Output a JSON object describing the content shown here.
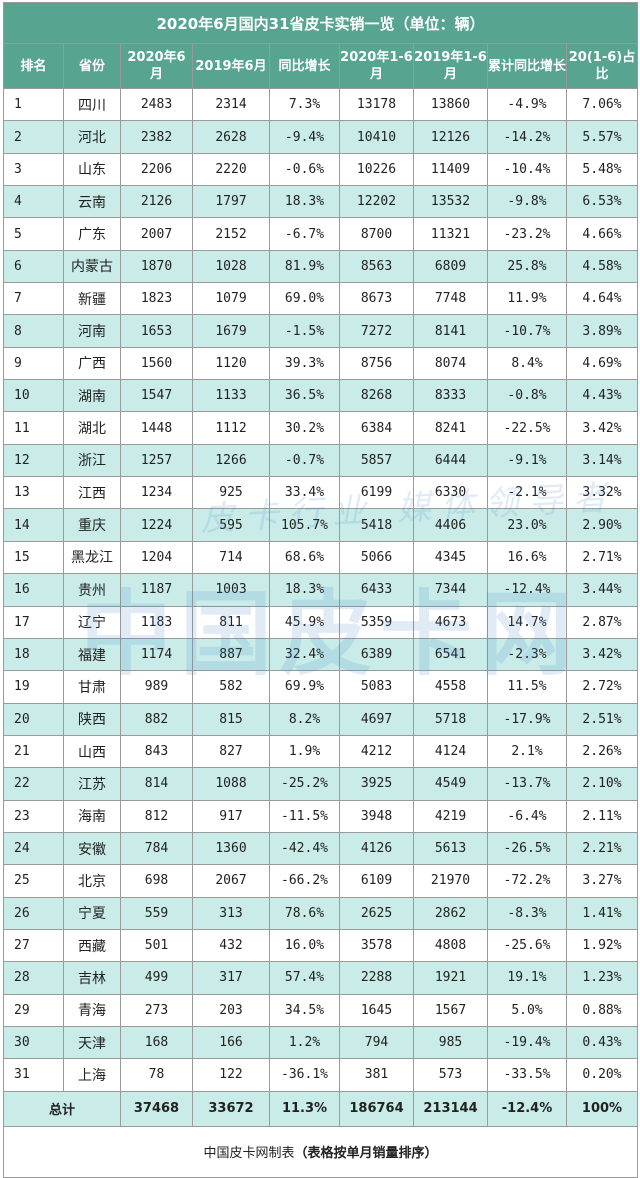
{
  "title": "2020年6月国内31省皮卡实销一览（单位：辆）",
  "headers": [
    "排名",
    "省份",
    "2020年6月",
    "2019年6月",
    "同比增长",
    "2020年1-6月",
    "2019年1-6月",
    "累计同比增长",
    "20(1-6)占比"
  ],
  "rows": [
    [
      "1",
      "四川",
      "2483",
      "2314",
      "7.3%",
      "13178",
      "13860",
      "-4.9%",
      "7.06%"
    ],
    [
      "2",
      "河北",
      "2382",
      "2628",
      "-9.4%",
      "10410",
      "12126",
      "-14.2%",
      "5.57%"
    ],
    [
      "3",
      "山东",
      "2206",
      "2220",
      "-0.6%",
      "10226",
      "11409",
      "-10.4%",
      "5.48%"
    ],
    [
      "4",
      "云南",
      "2126",
      "1797",
      "18.3%",
      "12202",
      "13532",
      "-9.8%",
      "6.53%"
    ],
    [
      "5",
      "广东",
      "2007",
      "2152",
      "-6.7%",
      "8700",
      "11321",
      "-23.2%",
      "4.66%"
    ],
    [
      "6",
      "内蒙古",
      "1870",
      "1028",
      "81.9%",
      "8563",
      "6809",
      "25.8%",
      "4.58%"
    ],
    [
      "7",
      "新疆",
      "1823",
      "1079",
      "69.0%",
      "8673",
      "7748",
      "11.9%",
      "4.64%"
    ],
    [
      "8",
      "河南",
      "1653",
      "1679",
      "-1.5%",
      "7272",
      "8141",
      "-10.7%",
      "3.89%"
    ],
    [
      "9",
      "广西",
      "1560",
      "1120",
      "39.3%",
      "8756",
      "8074",
      "8.4%",
      "4.69%"
    ],
    [
      "10",
      "湖南",
      "1547",
      "1133",
      "36.5%",
      "8268",
      "8333",
      "-0.8%",
      "4.43%"
    ],
    [
      "11",
      "湖北",
      "1448",
      "1112",
      "30.2%",
      "6384",
      "8241",
      "-22.5%",
      "3.42%"
    ],
    [
      "12",
      "浙江",
      "1257",
      "1266",
      "-0.7%",
      "5857",
      "6444",
      "-9.1%",
      "3.14%"
    ],
    [
      "13",
      "江西",
      "1234",
      "925",
      "33.4%",
      "6199",
      "6330",
      "-2.1%",
      "3.32%"
    ],
    [
      "14",
      "重庆",
      "1224",
      "595",
      "105.7%",
      "5418",
      "4406",
      "23.0%",
      "2.90%"
    ],
    [
      "15",
      "黑龙江",
      "1204",
      "714",
      "68.6%",
      "5066",
      "4345",
      "16.6%",
      "2.71%"
    ],
    [
      "16",
      "贵州",
      "1187",
      "1003",
      "18.3%",
      "6433",
      "7344",
      "-12.4%",
      "3.44%"
    ],
    [
      "17",
      "辽宁",
      "1183",
      "811",
      "45.9%",
      "5359",
      "4673",
      "14.7%",
      "2.87%"
    ],
    [
      "18",
      "福建",
      "1174",
      "887",
      "32.4%",
      "6389",
      "6541",
      "-2.3%",
      "3.42%"
    ],
    [
      "19",
      "甘肃",
      "989",
      "582",
      "69.9%",
      "5083",
      "4558",
      "11.5%",
      "2.72%"
    ],
    [
      "20",
      "陕西",
      "882",
      "815",
      "8.2%",
      "4697",
      "5718",
      "-17.9%",
      "2.51%"
    ],
    [
      "21",
      "山西",
      "843",
      "827",
      "1.9%",
      "4212",
      "4124",
      "2.1%",
      "2.26%"
    ],
    [
      "22",
      "江苏",
      "814",
      "1088",
      "-25.2%",
      "3925",
      "4549",
      "-13.7%",
      "2.10%"
    ],
    [
      "23",
      "海南",
      "812",
      "917",
      "-11.5%",
      "3948",
      "4219",
      "-6.4%",
      "2.11%"
    ],
    [
      "24",
      "安徽",
      "784",
      "1360",
      "-42.4%",
      "4126",
      "5613",
      "-26.5%",
      "2.21%"
    ],
    [
      "25",
      "北京",
      "698",
      "2067",
      "-66.2%",
      "6109",
      "21970",
      "-72.2%",
      "3.27%"
    ],
    [
      "26",
      "宁夏",
      "559",
      "313",
      "78.6%",
      "2625",
      "2862",
      "-8.3%",
      "1.41%"
    ],
    [
      "27",
      "西藏",
      "501",
      "432",
      "16.0%",
      "3578",
      "4808",
      "-25.6%",
      "1.92%"
    ],
    [
      "28",
      "吉林",
      "499",
      "317",
      "57.4%",
      "2288",
      "1921",
      "19.1%",
      "1.23%"
    ],
    [
      "29",
      "青海",
      "273",
      "203",
      "34.5%",
      "1645",
      "1567",
      "5.0%",
      "0.88%"
    ],
    [
      "30",
      "天津",
      "168",
      "166",
      "1.2%",
      "794",
      "985",
      "-19.4%",
      "0.43%"
    ],
    [
      "31",
      "上海",
      "78",
      "122",
      "-36.1%",
      "381",
      "573",
      "-33.5%",
      "0.20%"
    ]
  ],
  "total": [
    "总计",
    "37468",
    "33672",
    "11.3%",
    "186764",
    "213144",
    "-12.4%",
    "100%"
  ],
  "footer": {
    "prefix": "中国皮卡网制表",
    "note": "（表格按单月销量排序）"
  },
  "watermark": {
    "main": "中国皮卡网",
    "sub": "皮卡行业 媒体领导者"
  },
  "colors": {
    "header_bg": "#57a491",
    "alt_row_bg": "#c9ece9",
    "border": "#9a9a9a"
  }
}
